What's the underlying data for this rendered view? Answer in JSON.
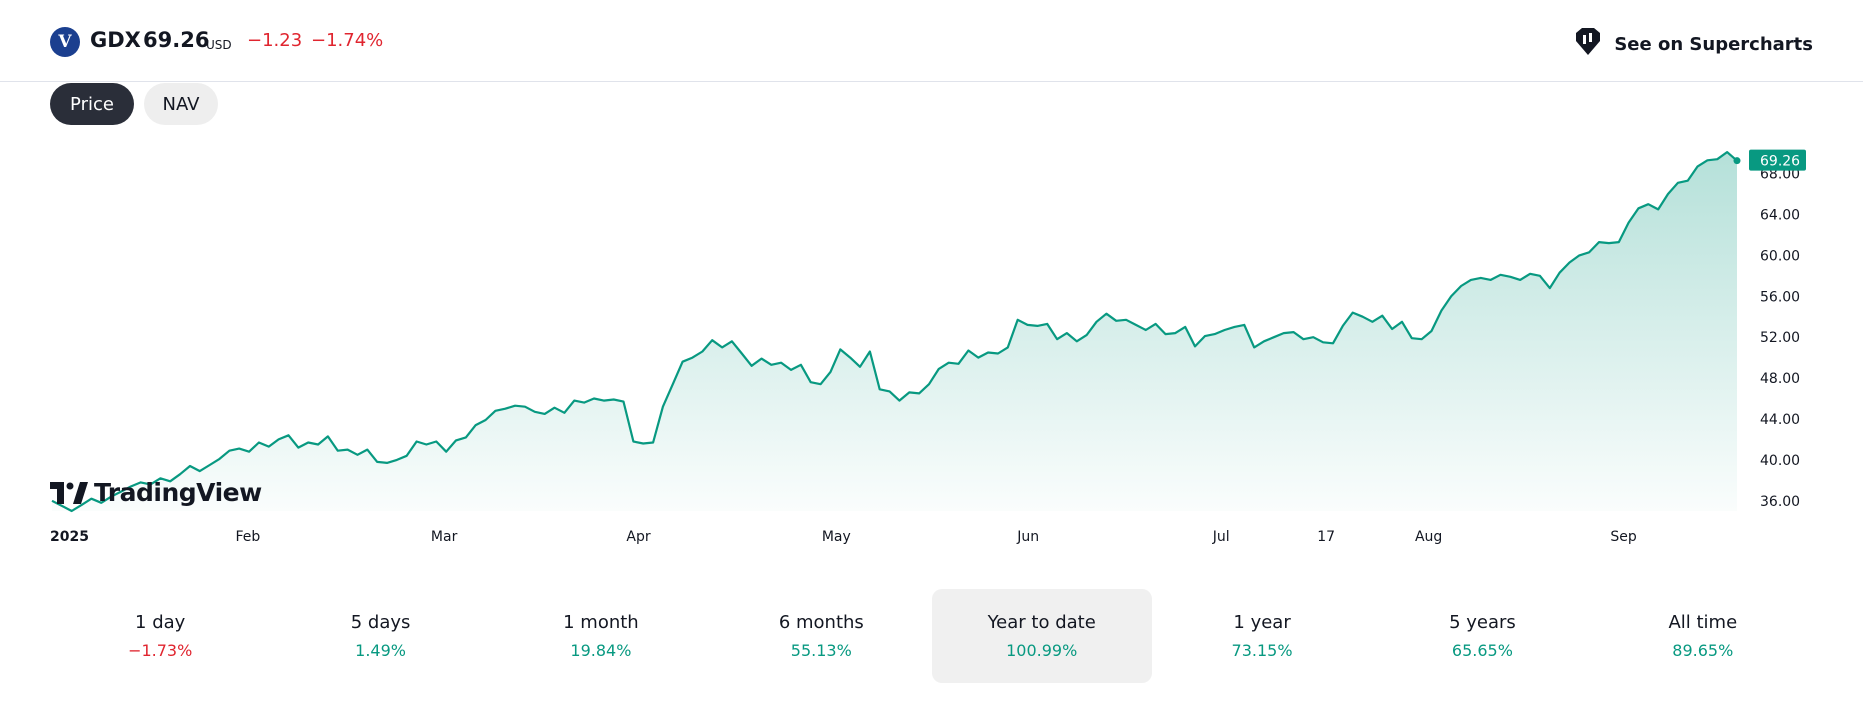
{
  "header": {
    "logo_letter": "V",
    "ticker": "GDX",
    "price": "69.26",
    "currency": "USD",
    "change": "−1.23",
    "change_pct": "−1.74%",
    "supercharts_label": "See on Supercharts"
  },
  "toggles": {
    "price_label": "Price",
    "nav_label": "NAV",
    "active": "Price"
  },
  "watermark": "TradingView",
  "colors": {
    "line": "#089981",
    "negative": "#e0252f",
    "positive": "#089981",
    "price_tag": "#089981"
  },
  "chart_data": {
    "type": "area",
    "x_tick_labels": [
      "2025",
      "Feb",
      "Mar",
      "Apr",
      "May",
      "Jun",
      "Jul",
      "17",
      "Aug",
      "Sep"
    ],
    "y_tick_labels": [
      "36.00",
      "40.00",
      "44.00",
      "48.00",
      "52.00",
      "56.00",
      "60.00",
      "64.00",
      "68.00"
    ],
    "ylim": [
      35.0,
      70.5
    ],
    "last_price_label": "69.26",
    "series": [
      {
        "values": [
          36.0,
          35.5,
          35.0,
          35.6,
          36.2,
          35.8,
          36.4,
          36.9,
          37.4,
          37.8,
          37.6,
          38.2,
          37.9,
          38.6,
          39.4,
          38.9,
          39.5,
          40.1,
          40.9,
          41.1,
          40.8,
          41.7,
          41.3,
          42.0,
          42.4,
          41.2,
          41.7,
          41.5,
          42.3,
          40.9,
          41.0,
          40.5,
          41.0,
          39.8,
          39.7,
          40.0,
          40.4,
          41.8,
          41.5,
          41.8,
          40.8,
          41.9,
          42.2,
          43.4,
          43.9,
          44.8,
          45.0,
          45.3,
          45.2,
          44.7,
          44.5,
          45.1,
          44.6,
          45.8,
          45.6,
          46.0,
          45.8,
          45.9,
          45.7,
          41.8,
          41.6,
          41.7,
          45.2,
          47.4,
          49.6,
          50.0,
          50.6,
          51.7,
          51.0,
          51.6,
          50.4,
          49.2,
          49.9,
          49.3,
          49.5,
          48.8,
          49.3,
          47.6,
          47.4,
          48.6,
          50.8,
          50.0,
          49.1,
          50.6,
          46.9,
          46.7,
          45.8,
          46.6,
          46.5,
          47.4,
          48.9,
          49.5,
          49.4,
          50.7,
          50.0,
          50.5,
          50.4,
          51.0,
          53.7,
          53.2,
          53.1,
          53.3,
          51.8,
          52.4,
          51.6,
          52.2,
          53.5,
          54.3,
          53.6,
          53.7,
          53.2,
          52.7,
          53.3,
          52.3,
          52.4,
          53.0,
          51.1,
          52.1,
          52.3,
          52.7,
          53.0,
          53.2,
          51.0,
          51.6,
          52.0,
          52.4,
          52.5,
          51.8,
          52.0,
          51.5,
          51.4,
          53.1,
          54.4,
          54.0,
          53.5,
          54.1,
          52.8,
          53.5,
          51.9,
          51.8,
          52.6,
          54.6,
          56.0,
          57.0,
          57.6,
          57.8,
          57.6,
          58.1,
          57.9,
          57.6,
          58.2,
          58.0,
          56.8,
          58.3,
          59.3,
          60.0,
          60.3,
          61.3,
          61.2,
          61.3,
          63.2,
          64.6,
          65.0,
          64.5,
          66.0,
          67.1,
          67.3,
          68.7,
          69.3,
          69.4,
          70.1,
          69.26
        ]
      }
    ]
  },
  "periods": [
    {
      "label": "1 day",
      "value": "−1.73%",
      "sign": "neg"
    },
    {
      "label": "5 days",
      "value": "1.49%",
      "sign": "pos"
    },
    {
      "label": "1 month",
      "value": "19.84%",
      "sign": "pos"
    },
    {
      "label": "6 months",
      "value": "55.13%",
      "sign": "pos"
    },
    {
      "label": "Year to date",
      "value": "100.99%",
      "sign": "pos",
      "active": true
    },
    {
      "label": "1 year",
      "value": "73.15%",
      "sign": "pos"
    },
    {
      "label": "5 years",
      "value": "65.65%",
      "sign": "pos"
    },
    {
      "label": "All time",
      "value": "89.65%",
      "sign": "pos"
    }
  ]
}
